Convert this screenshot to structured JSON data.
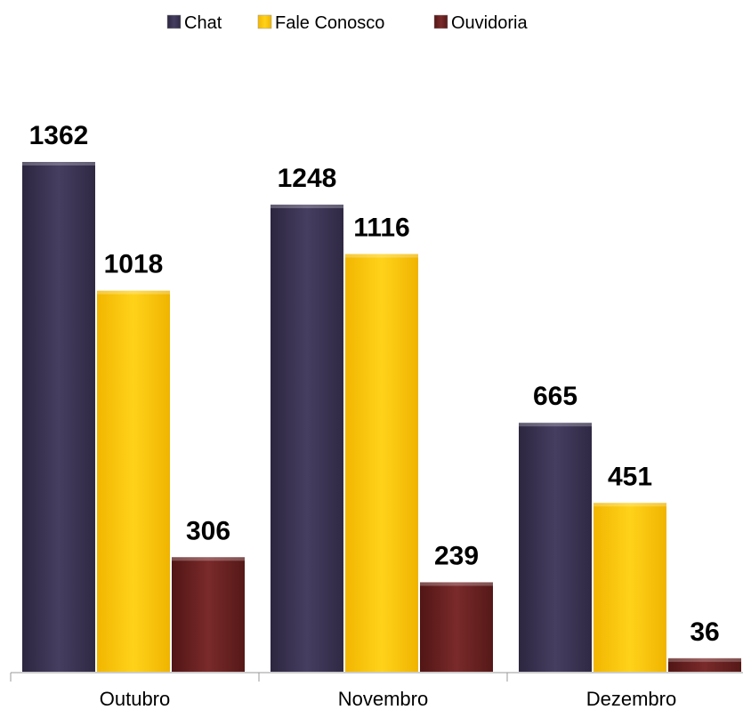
{
  "chart_data": {
    "type": "bar",
    "categories": [
      "Outubro",
      "Novembro",
      "Dezembro"
    ],
    "series": [
      {
        "name": "Chat",
        "values": [
          1362,
          1248,
          665
        ],
        "color": "#3f3756"
      },
      {
        "name": "Fale Conosco",
        "values": [
          1018,
          1116,
          451
        ],
        "color": "#ffc800"
      },
      {
        "name": "Ouvidoria",
        "values": [
          306,
          239,
          36
        ],
        "color": "#6b1f1f"
      }
    ],
    "ylim": [
      0,
      1362
    ],
    "grid": false,
    "legend": "top-center"
  }
}
